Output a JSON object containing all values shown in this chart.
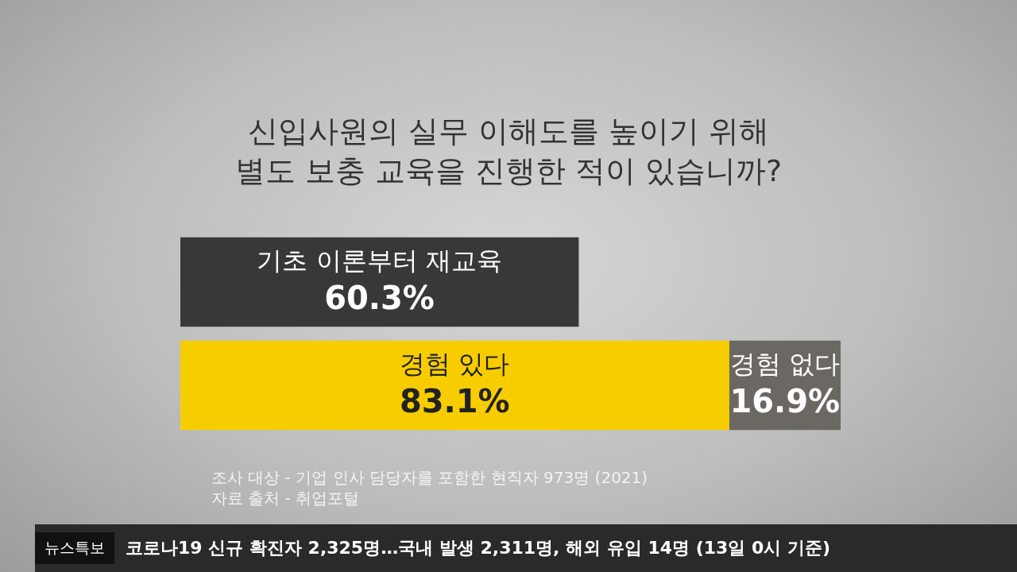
{
  "chart_data": {
    "type": "bar",
    "orientation": "horizontal",
    "stacked": true,
    "title": "신입사원의 실무 이해도를 높이기 위해\n별도 보충 교육을 진행한 적이 있습니까?",
    "categories": [
      null,
      null
    ],
    "series": [
      {
        "name": "경험 있다",
        "color": "#f8cd00",
        "values": [
          null,
          83.1
        ],
        "value_labels": [
          null,
          "83.1%"
        ]
      },
      {
        "name": "경험 없다",
        "color": "#6b6864",
        "values": [
          null,
          16.9
        ],
        "value_labels": [
          null,
          "16.9%"
        ]
      },
      {
        "name": "기초 이론부터 재교육",
        "color": "#383838",
        "values": [
          60.3,
          null
        ],
        "value_labels": [
          "60.3%",
          null
        ]
      }
    ],
    "xlim": [
      0,
      100
    ],
    "tick_labels": false,
    "legend": false,
    "annotations": [
      "조사 대상 - 기업 인사 담당자를 포함한 현직자 973명 (2021)",
      "자료 출처 - 취업포털",
      "뉴스특보",
      "코로나19 신규 확진자 2,325명…국내 발생 2,311명, 해외 유입 14명 (13일 0시 기준)"
    ]
  }
}
